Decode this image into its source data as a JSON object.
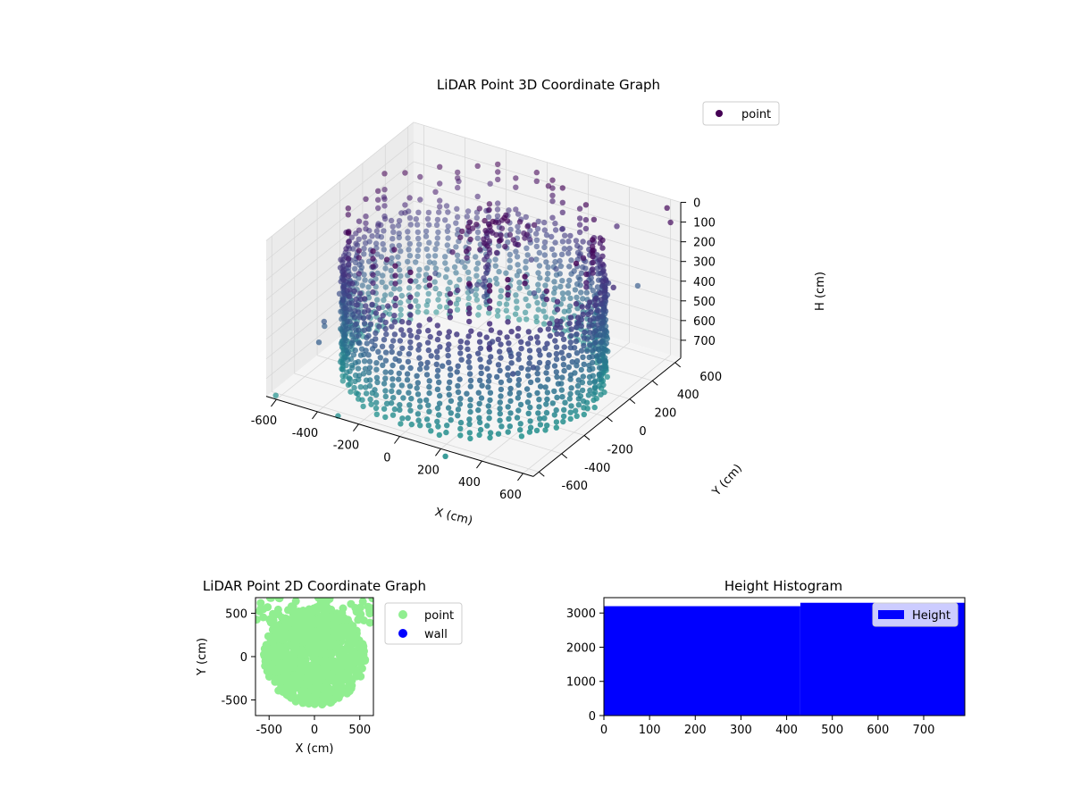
{
  "chart_data": [
    {
      "type": "scatter",
      "projection": "3d",
      "title": "LiDAR Point 3D Coordinate Graph",
      "xlabel": "X (cm)",
      "ylabel": "Y (cm)",
      "zlabel": "H (cm)",
      "xlim": [
        -650,
        650
      ],
      "ylim": [
        -650,
        650
      ],
      "zlim": [
        790,
        0
      ],
      "z_axis_inverted": true,
      "x_ticks": [
        "-600",
        "-400",
        "-200",
        "0",
        "200",
        "400",
        "600"
      ],
      "y_ticks": [
        "-600",
        "-400",
        "-200",
        "0",
        "200",
        "400",
        "600"
      ],
      "z_ticks": [
        "0",
        "100",
        "200",
        "300",
        "400",
        "500",
        "600",
        "700"
      ],
      "legend": {
        "entries": [
          "point"
        ],
        "placement": "upper-right",
        "marker_color": "#440154"
      },
      "colormap": "viridis",
      "grid": true,
      "series": [
        {
          "name": "point",
          "description_of_shape": "cylindrical wall of radius ~560 cm, from H≈0 to H≈790, plus a central column and a ring of sparse points near the ceiling",
          "wall_radius": 560,
          "wall_height": [
            0,
            790
          ],
          "column_center": [
            40,
            40
          ],
          "outliers": [
            [
              -620,
              -620,
              790
            ],
            [
              600,
              620,
              30
            ],
            [
              650,
              560,
              60
            ],
            [
              -300,
              -650,
              780
            ],
            [
              250,
              -700,
              790
            ]
          ]
        }
      ]
    },
    {
      "type": "scatter",
      "title": "LiDAR Point 2D Coordinate Graph",
      "xlabel": "X (cm)",
      "ylabel": "Y (cm)",
      "xlim": [
        -650,
        650
      ],
      "ylim": [
        -680,
        680
      ],
      "x_ticks": [
        "-500",
        "0",
        "500"
      ],
      "y_ticks": [
        "-500",
        "0",
        "500"
      ],
      "legend": {
        "entries": [
          "point",
          "wall"
        ],
        "placement": "outside-right"
      },
      "series": [
        {
          "name": "point",
          "color": "#90ee90",
          "shape": "filled disc radius ~560 cm centred near origin with scattered points toward the top edge"
        },
        {
          "name": "wall",
          "color": "#0000ff",
          "values": []
        }
      ]
    },
    {
      "type": "bar",
      "subtype": "histogram",
      "title": "Height Histogram",
      "xlim": [
        0,
        790
      ],
      "ylim": [
        0,
        3450
      ],
      "x_ticks": [
        "0",
        "100",
        "200",
        "300",
        "400",
        "500",
        "600",
        "700"
      ],
      "y_ticks": [
        "0",
        "1000",
        "2000",
        "3000"
      ],
      "legend": {
        "entries": [
          "Height"
        ],
        "placement": "upper-right"
      },
      "color": "#0000ff",
      "bins": [
        {
          "x0": 0,
          "x1": 430,
          "count": 3200
        },
        {
          "x0": 430,
          "x1": 790,
          "count": 3300
        }
      ]
    }
  ]
}
